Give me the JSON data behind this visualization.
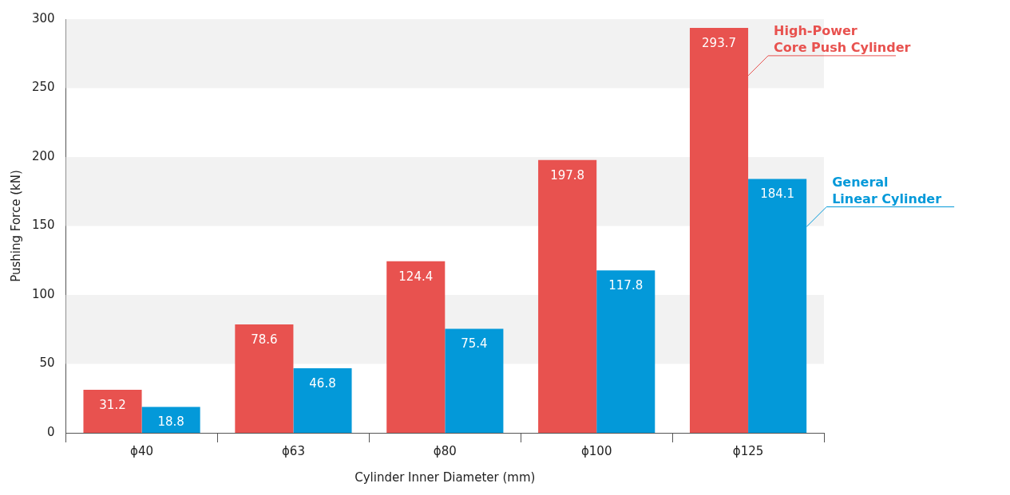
{
  "chart_data": {
    "type": "bar",
    "xlabel": "Cylinder Inner Diameter (mm)",
    "ylabel": "Pushing Force (kN)",
    "categories": [
      "ϕ40",
      "ϕ63",
      "ϕ80",
      "ϕ100",
      "ϕ125"
    ],
    "series": [
      {
        "name": "High-Power Core Push Cylinder",
        "color": "#e8524f",
        "values": [
          31.2,
          78.6,
          124.4,
          197.8,
          293.7
        ]
      },
      {
        "name": "General Linear Cylinder",
        "color": "#0399d9",
        "values": [
          18.8,
          46.8,
          75.4,
          117.8,
          184.1
        ]
      }
    ],
    "ylim": [
      0,
      300
    ],
    "yticks": [
      0,
      50,
      100,
      150,
      200,
      250,
      300
    ],
    "legend": false,
    "data_labels": true
  }
}
